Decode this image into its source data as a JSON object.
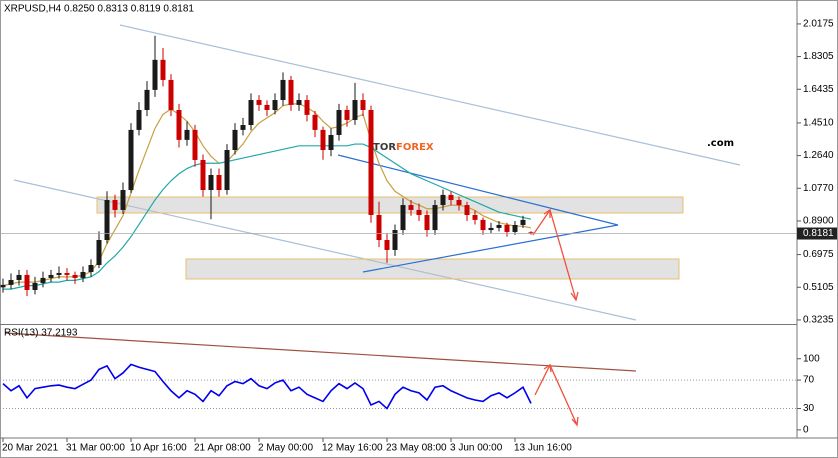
{
  "logo": {
    "part1": "TOR",
    "part2": "FOREX",
    "part3": ".com"
  },
  "chart_data": [
    {
      "type": "candlestick",
      "title": "XRPUSD,H4  0.8250 0.8313 0.8119 0.8181",
      "up_color": "#1a1a1a",
      "down_color": "#cc0000",
      "open": [
        0.51,
        0.524,
        0.552,
        0.581,
        0.495,
        0.535,
        0.564,
        0.581,
        0.592,
        0.581,
        0.564,
        0.598,
        0.638,
        0.781,
        1.01,
        0.953,
        1.067,
        1.411,
        1.525,
        1.64,
        1.812,
        1.697,
        1.525,
        1.354,
        1.411,
        1.239,
        1.067,
        1.153,
        1.067,
        1.296,
        1.411,
        1.439,
        1.582,
        1.554,
        1.525,
        1.582,
        1.697,
        1.554,
        1.582,
        1.497,
        1.411,
        1.296,
        1.382,
        1.525,
        1.468,
        1.582,
        1.525,
        0.924,
        0.781,
        0.724,
        0.838,
        0.981,
        0.953,
        0.924,
        0.838,
        0.981,
        1.039,
        1.01,
        0.981,
        0.924,
        0.896,
        0.838,
        0.85,
        0.867,
        0.827,
        0.867,
        0.825
      ],
      "high": [
        0.56,
        0.59,
        0.61,
        0.61,
        0.57,
        0.6,
        0.61,
        0.63,
        0.62,
        0.6,
        0.63,
        0.67,
        0.83,
        1.06,
        1.04,
        1.11,
        1.45,
        1.57,
        1.69,
        1.95,
        1.88,
        1.73,
        1.56,
        1.46,
        1.44,
        1.27,
        1.19,
        1.19,
        1.33,
        1.45,
        1.48,
        1.62,
        1.61,
        1.58,
        1.62,
        1.74,
        1.72,
        1.62,
        1.61,
        1.52,
        1.43,
        1.42,
        1.56,
        1.55,
        1.68,
        1.62,
        1.55,
        1.0,
        0.82,
        0.87,
        1.02,
        1.01,
        0.99,
        0.95,
        1.01,
        1.07,
        1.06,
        1.03,
        1.0,
        0.95,
        0.91,
        0.88,
        0.89,
        0.88,
        0.89,
        0.92,
        0.8313
      ],
      "low": [
        0.48,
        0.5,
        0.52,
        0.46,
        0.47,
        0.51,
        0.54,
        0.56,
        0.55,
        0.53,
        0.54,
        0.57,
        0.62,
        0.76,
        0.91,
        0.93,
        1.05,
        1.38,
        1.49,
        1.6,
        1.66,
        1.49,
        1.31,
        1.32,
        1.2,
        1.03,
        0.9,
        1.03,
        1.04,
        1.27,
        1.38,
        1.41,
        1.52,
        1.49,
        1.5,
        1.55,
        1.52,
        1.52,
        1.46,
        1.37,
        1.24,
        1.26,
        1.35,
        1.43,
        1.44,
        1.49,
        0.88,
        0.74,
        0.65,
        0.69,
        0.81,
        0.92,
        0.89,
        0.8,
        0.81,
        0.95,
        0.98,
        0.95,
        0.89,
        0.87,
        0.81,
        0.82,
        0.83,
        0.8,
        0.81,
        0.85,
        0.8119
      ],
      "close": [
        0.524,
        0.552,
        0.581,
        0.495,
        0.535,
        0.564,
        0.581,
        0.592,
        0.581,
        0.564,
        0.598,
        0.638,
        0.781,
        1.01,
        0.953,
        1.067,
        1.411,
        1.525,
        1.64,
        1.812,
        1.697,
        1.525,
        1.354,
        1.411,
        1.239,
        1.067,
        1.153,
        1.067,
        1.296,
        1.411,
        1.439,
        1.582,
        1.554,
        1.525,
        1.582,
        1.697,
        1.554,
        1.582,
        1.497,
        1.411,
        1.296,
        1.382,
        1.525,
        1.468,
        1.582,
        1.525,
        0.924,
        0.781,
        0.724,
        0.838,
        0.981,
        0.953,
        0.924,
        0.838,
        0.981,
        1.039,
        1.01,
        0.981,
        0.924,
        0.896,
        0.838,
        0.85,
        0.867,
        0.827,
        0.867,
        0.896,
        0.8181
      ],
      "lines": [
        {
          "color": "#c8a040",
          "values": [
            0.52,
            0.53,
            0.54,
            0.54,
            0.54,
            0.55,
            0.56,
            0.57,
            0.57,
            0.57,
            0.58,
            0.6,
            0.66,
            0.76,
            0.84,
            0.92,
            1.05,
            1.18,
            1.3,
            1.42,
            1.5,
            1.53,
            1.5,
            1.46,
            1.4,
            1.32,
            1.26,
            1.22,
            1.23,
            1.28,
            1.33,
            1.4,
            1.45,
            1.48,
            1.51,
            1.55,
            1.56,
            1.56,
            1.54,
            1.51,
            1.46,
            1.42,
            1.43,
            1.45,
            1.48,
            1.5,
            1.35,
            1.22,
            1.12,
            1.06,
            1.03,
            1.0,
            0.98,
            0.96,
            0.96,
            0.97,
            0.98,
            0.98,
            0.97,
            0.95,
            0.92,
            0.9,
            0.88,
            0.87,
            0.86,
            0.86,
            0.85
          ]
        },
        {
          "color": "#20a8a8",
          "values": [
            0.5,
            0.5,
            0.51,
            0.52,
            0.52,
            0.53,
            0.54,
            0.54,
            0.55,
            0.55,
            0.56,
            0.57,
            0.6,
            0.65,
            0.69,
            0.74,
            0.8,
            0.87,
            0.94,
            1.01,
            1.07,
            1.12,
            1.16,
            1.19,
            1.21,
            1.22,
            1.22,
            1.22,
            1.23,
            1.24,
            1.25,
            1.26,
            1.27,
            1.28,
            1.29,
            1.3,
            1.31,
            1.32,
            1.32,
            1.32,
            1.32,
            1.32,
            1.32,
            1.32,
            1.33,
            1.33,
            1.31,
            1.28,
            1.25,
            1.22,
            1.19,
            1.16,
            1.14,
            1.12,
            1.1,
            1.08,
            1.06,
            1.04,
            1.02,
            1.0,
            0.98,
            0.96,
            0.94,
            0.93,
            0.92,
            0.91,
            0.9
          ]
        }
      ],
      "ylim": [
        0.306,
        2.143
      ],
      "yticks": [
        2.0175,
        1.8305,
        1.6435,
        {
          "value": 1.451,
          "label": "1.4510"
        },
        {
          "value": 1.264,
          "label": "1.2640"
        },
        {
          "value": 1.077,
          "label": "1.0770"
        },
        {
          "value": 0.89,
          "label": "0.8900"
        },
        0.6975,
        0.5105,
        0.3235
      ]
    },
    {
      "type": "line",
      "title": "RSI(13) 37.2193",
      "color": "#0000ee",
      "categories": [
        "20 Mar 2021",
        null,
        null,
        null,
        null,
        null,
        null,
        null,
        "31 Mar 00:00",
        null,
        null,
        null,
        null,
        null,
        null,
        null,
        "10 Apr 16:00",
        null,
        null,
        null,
        null,
        null,
        null,
        null,
        "21 Apr 08:00",
        null,
        null,
        null,
        null,
        null,
        null,
        null,
        "2 May 00:00",
        null,
        null,
        null,
        null,
        null,
        null,
        null,
        "12 May 16:00",
        null,
        null,
        null,
        null,
        null,
        null,
        null,
        "23 May 08:00",
        null,
        null,
        null,
        null,
        null,
        null,
        null,
        "3 Jun 00:00",
        null,
        null,
        null,
        null,
        null,
        null,
        null,
        "13 Jun 16:00",
        null,
        null
      ],
      "values": [
        65,
        55,
        62,
        45,
        58,
        60,
        62,
        63,
        60,
        58,
        64,
        70,
        85,
        90,
        72,
        80,
        92,
        88,
        85,
        82,
        68,
        55,
        45,
        55,
        50,
        40,
        55,
        48,
        62,
        68,
        65,
        72,
        62,
        58,
        66,
        70,
        55,
        60,
        50,
        45,
        40,
        55,
        65,
        58,
        66,
        58,
        35,
        40,
        30,
        50,
        60,
        55,
        52,
        42,
        60,
        62,
        55,
        50,
        45,
        42,
        40,
        48,
        52,
        45,
        52,
        60,
        37.2193
      ],
      "levels": [
        70,
        30
      ],
      "ylim": [
        -10,
        146
      ],
      "yticks": [
        100,
        70,
        30,
        0
      ]
    }
  ]
}
